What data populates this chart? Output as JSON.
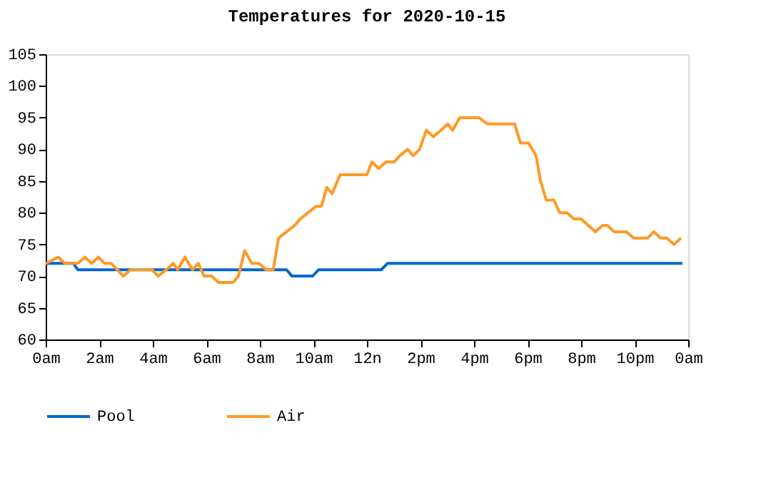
{
  "chart_data": {
    "type": "line",
    "title": "Temperatures for 2020-10-15",
    "xlim": [
      "2020-10-15T00:00",
      "2020-10-16T00:00"
    ],
    "ylim": [
      60,
      105
    ],
    "xticks": [
      {
        "value": "2020-10-15T00:00",
        "label": "0am"
      },
      {
        "value": "2020-10-15T02:00",
        "label": "2am"
      },
      {
        "value": "2020-10-15T04:00",
        "label": "4am"
      },
      {
        "value": "2020-10-15T06:00",
        "label": "6am"
      },
      {
        "value": "2020-10-15T08:00",
        "label": "8am"
      },
      {
        "value": "2020-10-15T10:00",
        "label": "10am"
      },
      {
        "value": "2020-10-15T12:00",
        "label": "12n"
      },
      {
        "value": "2020-10-15T14:00",
        "label": "2pm"
      },
      {
        "value": "2020-10-15T16:00",
        "label": "4pm"
      },
      {
        "value": "2020-10-15T18:00",
        "label": "6pm"
      },
      {
        "value": "2020-10-15T20:00",
        "label": "8pm"
      },
      {
        "value": "2020-10-15T22:00",
        "label": "10pm"
      },
      {
        "value": "2020-10-16T00:00",
        "label": "0am"
      }
    ],
    "yticks": [
      60,
      65,
      70,
      75,
      80,
      85,
      90,
      95,
      100,
      105
    ],
    "grid": false,
    "legend": "bottom",
    "marker": "none",
    "line_style": "solid",
    "series": [
      {
        "name": "Pool",
        "color": "#0066cc",
        "x": [
          "2020-10-15T00:00",
          "2020-10-15T01:02",
          "2020-10-15T01:12",
          "2020-10-15T09:00",
          "2020-10-15T09:12",
          "2020-10-15T09:58",
          "2020-10-15T10:12",
          "2020-10-15T12:32",
          "2020-10-15T12:46",
          "2020-10-15T23:47"
        ],
        "values": [
          72,
          72,
          71,
          71,
          70,
          70,
          71,
          71,
          72,
          72
        ]
      },
      {
        "name": "Air",
        "color": "#ff9922",
        "x": [
          "2020-10-15T00:00",
          "2020-10-15T00:28",
          "2020-10-15T00:43",
          "2020-10-15T01:12",
          "2020-10-15T01:28",
          "2020-10-15T01:43",
          "2020-10-15T01:58",
          "2020-10-15T02:12",
          "2020-10-15T02:27",
          "2020-10-15T02:54",
          "2020-10-15T03:10",
          "2020-10-15T03:58",
          "2020-10-15T04:12",
          "2020-10-15T04:30",
          "2020-10-15T04:46",
          "2020-10-15T04:56",
          "2020-10-15T05:12",
          "2020-10-15T05:29",
          "2020-10-15T05:42",
          "2020-10-15T05:55",
          "2020-10-15T06:12",
          "2020-10-15T06:27",
          "2020-10-15T07:00",
          "2020-10-15T07:12",
          "2020-10-15T07:26",
          "2020-10-15T07:42",
          "2020-10-15T07:58",
          "2020-10-15T08:14",
          "2020-10-15T08:30",
          "2020-10-15T08:42",
          "2020-10-15T09:00",
          "2020-10-15T09:18",
          "2020-10-15T09:30",
          "2020-10-15T09:48",
          "2020-10-15T10:06",
          "2020-10-15T10:18",
          "2020-10-15T10:30",
          "2020-10-15T10:42",
          "2020-10-15T11:00",
          "2020-10-15T11:30",
          "2020-10-15T12:00",
          "2020-10-15T12:11",
          "2020-10-15T12:26",
          "2020-10-15T12:43",
          "2020-10-15T13:01",
          "2020-10-15T13:14",
          "2020-10-15T13:31",
          "2020-10-15T13:43",
          "2020-10-15T13:58",
          "2020-10-15T14:13",
          "2020-10-15T14:29",
          "2020-10-15T14:46",
          "2020-10-15T15:01",
          "2020-10-15T15:12",
          "2020-10-15T15:28",
          "2020-10-15T16:11",
          "2020-10-15T16:30",
          "2020-10-15T17:31",
          "2020-10-15T17:44",
          "2020-10-15T18:02",
          "2020-10-15T18:19",
          "2020-10-15T18:29",
          "2020-10-15T18:42",
          "2020-10-15T18:59",
          "2020-10-15T19:12",
          "2020-10-15T19:28",
          "2020-10-15T19:44",
          "2020-10-15T20:00",
          "2020-10-15T20:16",
          "2020-10-15T20:32",
          "2020-10-15T20:48",
          "2020-10-15T20:59",
          "2020-10-15T21:14",
          "2020-10-15T21:41",
          "2020-10-15T21:58",
          "2020-10-15T22:29",
          "2020-10-15T22:43",
          "2020-10-15T22:58",
          "2020-10-15T23:12",
          "2020-10-15T23:28",
          "2020-10-15T23:44"
        ],
        "values": [
          72,
          73,
          72,
          72,
          73,
          72,
          73,
          72,
          72,
          70,
          71,
          71,
          70,
          71,
          72,
          71,
          73,
          71,
          72,
          70,
          70,
          69,
          69,
          70,
          74,
          72,
          72,
          71,
          71,
          76,
          77,
          78,
          79,
          80,
          81,
          81,
          84,
          83,
          86,
          86,
          86,
          88,
          87,
          88,
          88,
          89,
          90,
          89,
          90,
          93,
          92,
          93,
          94,
          93,
          95,
          95,
          94,
          94,
          91,
          91,
          89,
          85,
          82,
          82,
          80,
          80,
          79,
          79,
          78,
          77,
          78,
          78,
          77,
          77,
          76,
          76,
          77,
          76,
          76,
          75,
          76
        ]
      }
    ]
  }
}
